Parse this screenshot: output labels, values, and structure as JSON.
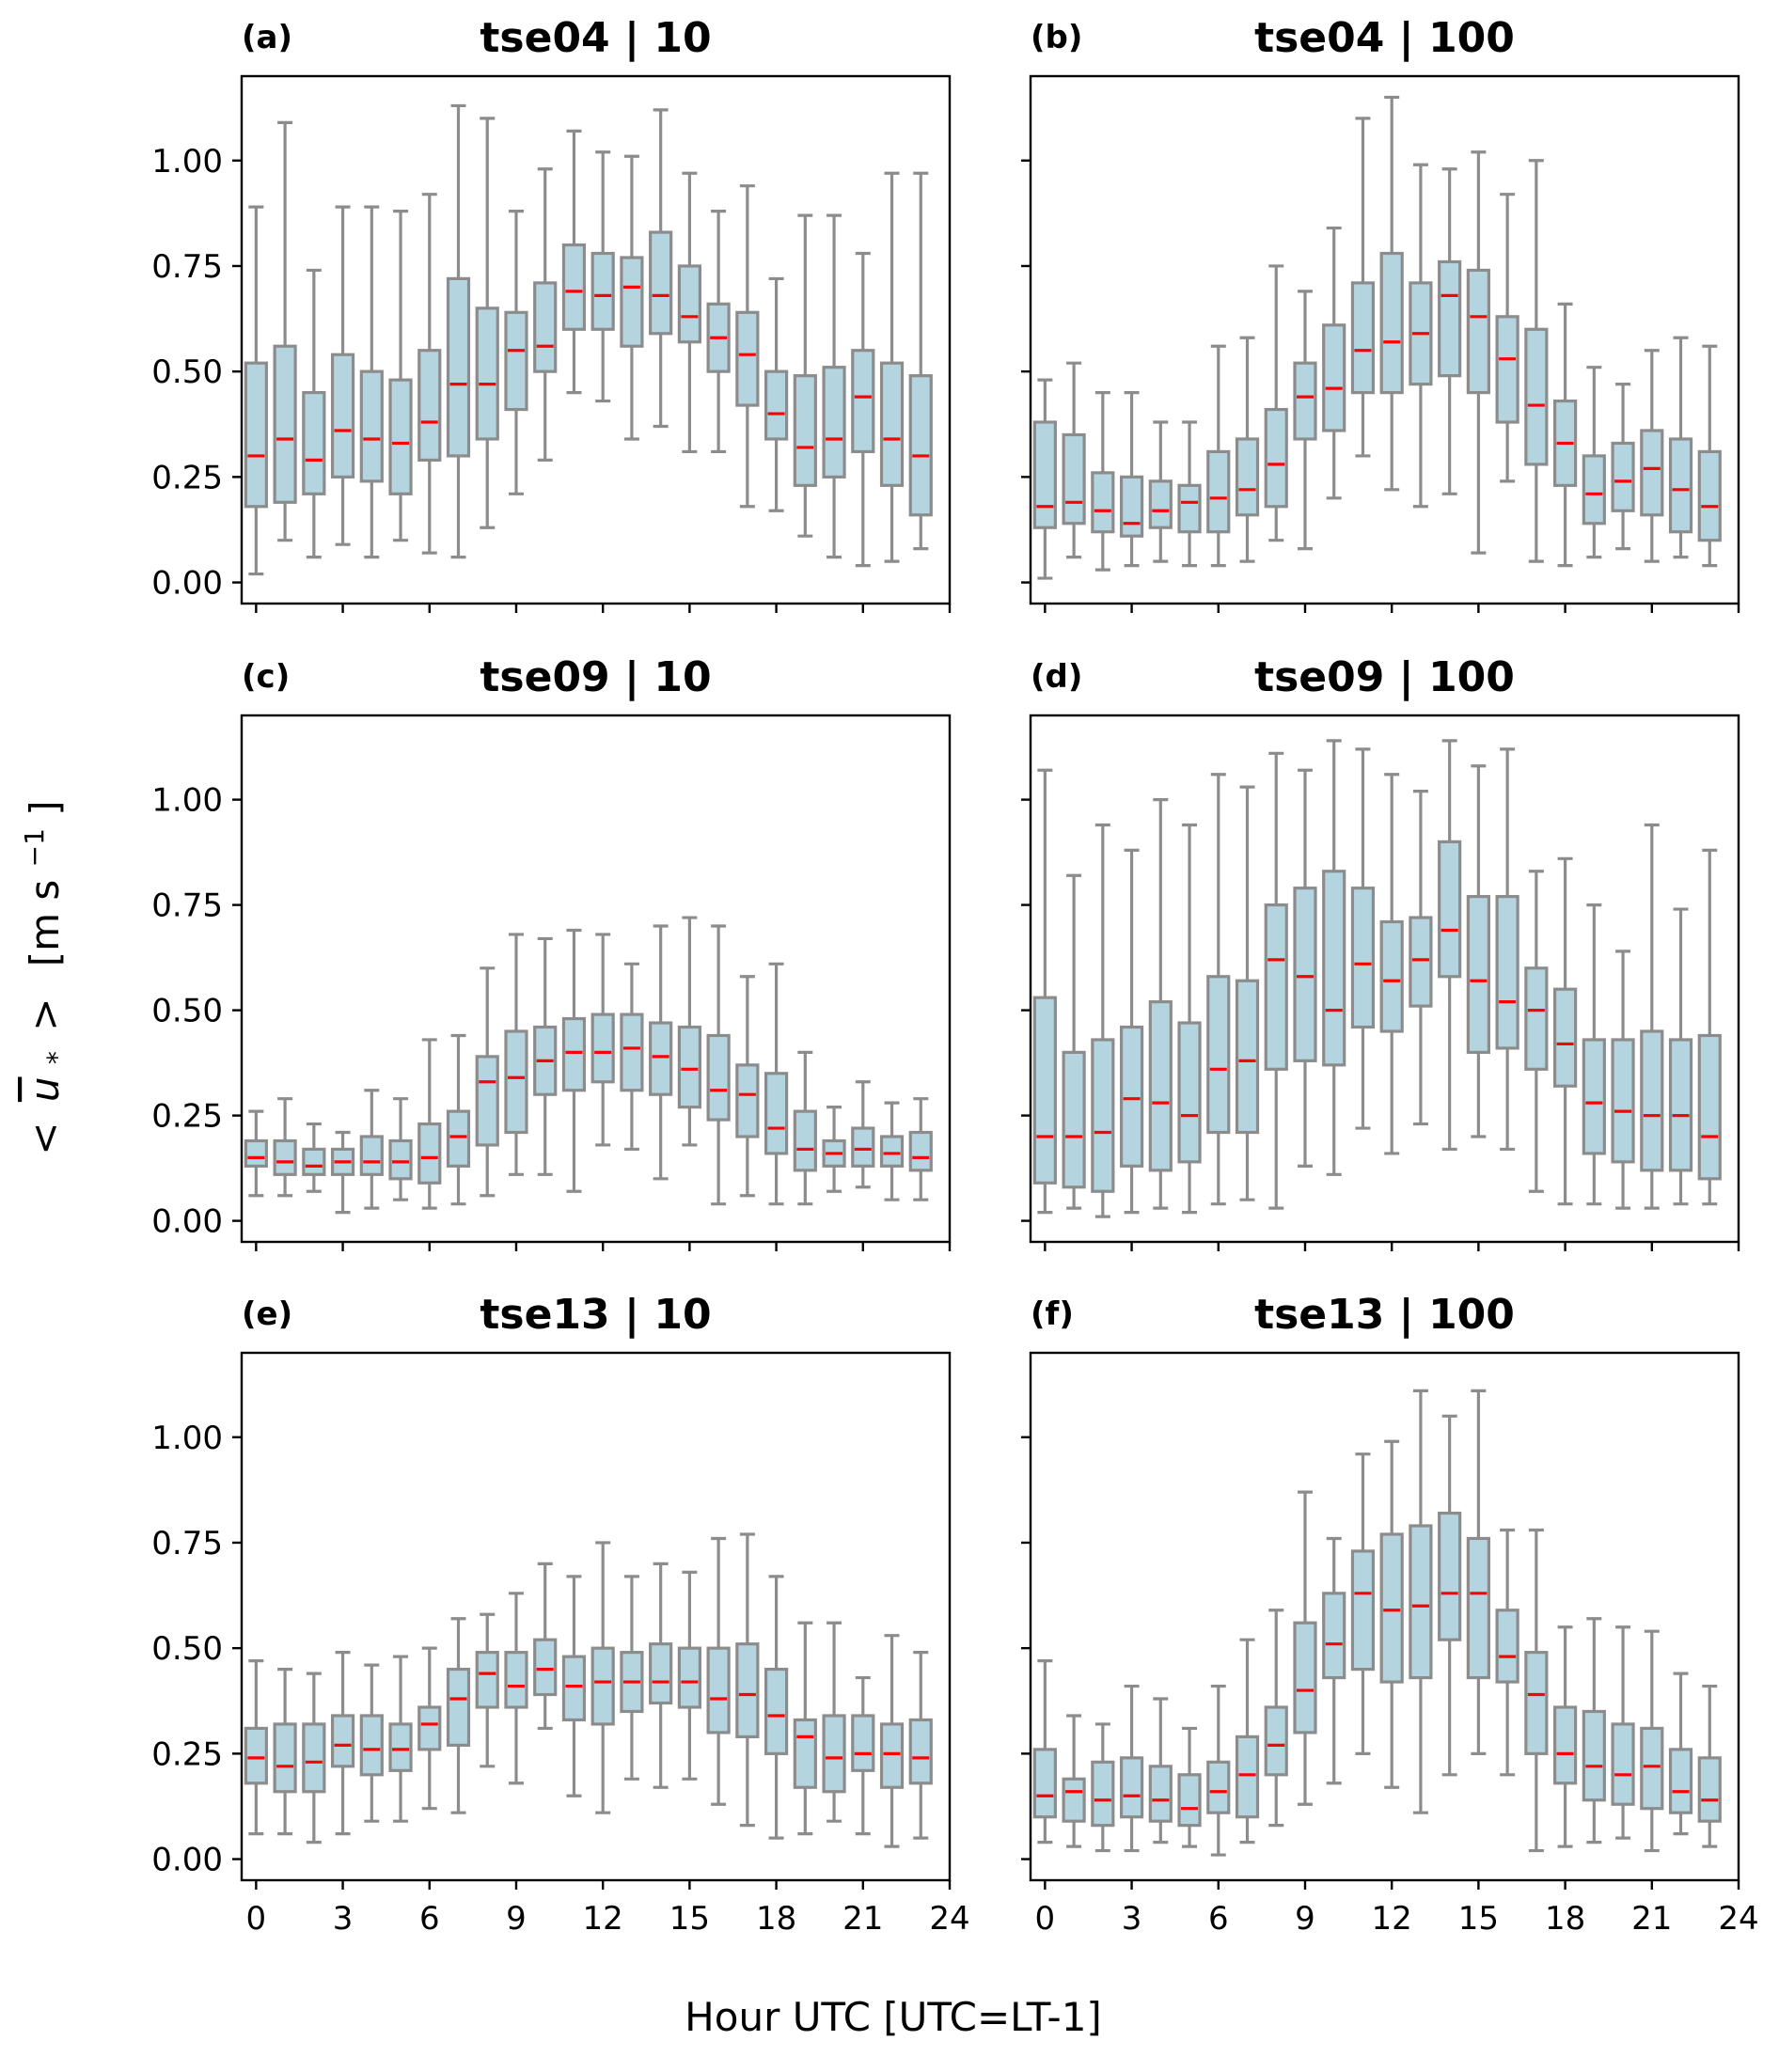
{
  "chart_data": {
    "type": "box",
    "figure": {
      "xlabel": "Hour UTC [UTC=LT-1]",
      "ylabel_parts": {
        "open": "<",
        "symbol": "u",
        "subscript": "*",
        "close": ">",
        "unit": "[m s",
        "unit_exp": "−1",
        "unit_close": "]"
      },
      "ylabel": "< ū* > [m s⁻¹]"
    },
    "xlim": [
      -0.5,
      24
    ],
    "ylim": [
      -0.05,
      1.2
    ],
    "xticks": [
      0,
      3,
      6,
      9,
      12,
      15,
      18,
      21,
      24
    ],
    "yticks": [
      0.0,
      0.25,
      0.5,
      0.75,
      1.0
    ],
    "ytick_labels": [
      "0.00",
      "0.25",
      "0.50",
      "0.75",
      "1.00"
    ],
    "colors": {
      "box_fill": "#b4d5e0",
      "box_edge": "#8c8c8c",
      "median": "#ff0000",
      "axis": "#000000"
    },
    "hours": [
      0,
      1,
      2,
      3,
      4,
      5,
      6,
      7,
      8,
      9,
      10,
      11,
      12,
      13,
      14,
      15,
      16,
      17,
      18,
      19,
      20,
      21,
      22,
      23
    ],
    "panels": [
      {
        "letter": "(a)",
        "title": "tse04 | 10",
        "whisker_high": [
          0.89,
          1.09,
          0.74,
          0.89,
          0.89,
          0.88,
          0.92,
          1.13,
          1.1,
          0.88,
          0.98,
          1.07,
          1.02,
          1.01,
          1.12,
          0.97,
          0.88,
          0.94,
          0.72,
          0.87,
          0.87,
          0.78,
          0.97,
          0.97
        ],
        "q3": [
          0.52,
          0.56,
          0.45,
          0.54,
          0.5,
          0.48,
          0.55,
          0.72,
          0.65,
          0.64,
          0.71,
          0.8,
          0.78,
          0.77,
          0.83,
          0.75,
          0.66,
          0.64,
          0.5,
          0.49,
          0.51,
          0.55,
          0.52,
          0.49
        ],
        "median": [
          0.3,
          0.34,
          0.29,
          0.36,
          0.34,
          0.33,
          0.38,
          0.47,
          0.47,
          0.55,
          0.56,
          0.69,
          0.68,
          0.7,
          0.68,
          0.63,
          0.58,
          0.54,
          0.4,
          0.32,
          0.34,
          0.44,
          0.34,
          0.3
        ],
        "q1": [
          0.18,
          0.19,
          0.21,
          0.25,
          0.24,
          0.21,
          0.29,
          0.3,
          0.34,
          0.41,
          0.5,
          0.6,
          0.6,
          0.56,
          0.59,
          0.57,
          0.5,
          0.42,
          0.34,
          0.23,
          0.25,
          0.31,
          0.23,
          0.16
        ],
        "whisker_low": [
          0.02,
          0.1,
          0.06,
          0.09,
          0.06,
          0.1,
          0.07,
          0.06,
          0.13,
          0.21,
          0.29,
          0.45,
          0.43,
          0.34,
          0.37,
          0.31,
          0.31,
          0.18,
          0.17,
          0.11,
          0.06,
          0.04,
          0.05,
          0.08
        ]
      },
      {
        "letter": "(b)",
        "title": "tse04 | 100",
        "whisker_high": [
          0.48,
          0.52,
          0.45,
          0.45,
          0.38,
          0.38,
          0.56,
          0.58,
          0.75,
          0.69,
          0.84,
          1.1,
          1.15,
          0.99,
          0.98,
          1.02,
          0.92,
          1.0,
          0.66,
          0.51,
          0.47,
          0.55,
          0.58,
          0.56
        ],
        "q3": [
          0.38,
          0.35,
          0.26,
          0.25,
          0.24,
          0.23,
          0.31,
          0.34,
          0.41,
          0.52,
          0.61,
          0.71,
          0.78,
          0.71,
          0.76,
          0.74,
          0.63,
          0.6,
          0.43,
          0.3,
          0.33,
          0.36,
          0.34,
          0.31
        ],
        "median": [
          0.18,
          0.19,
          0.17,
          0.14,
          0.17,
          0.19,
          0.2,
          0.22,
          0.28,
          0.44,
          0.46,
          0.55,
          0.57,
          0.59,
          0.68,
          0.63,
          0.53,
          0.42,
          0.33,
          0.21,
          0.24,
          0.27,
          0.22,
          0.18
        ],
        "q1": [
          0.13,
          0.14,
          0.12,
          0.11,
          0.13,
          0.12,
          0.12,
          0.16,
          0.18,
          0.34,
          0.36,
          0.45,
          0.45,
          0.47,
          0.49,
          0.45,
          0.38,
          0.28,
          0.23,
          0.14,
          0.17,
          0.16,
          0.12,
          0.1
        ],
        "whisker_low": [
          0.01,
          0.06,
          0.03,
          0.04,
          0.05,
          0.04,
          0.04,
          0.05,
          0.1,
          0.08,
          0.2,
          0.3,
          0.22,
          0.18,
          0.21,
          0.07,
          0.24,
          0.05,
          0.04,
          0.06,
          0.08,
          0.05,
          0.06,
          0.04
        ]
      },
      {
        "letter": "(c)",
        "title": "tse09 | 10",
        "whisker_high": [
          0.26,
          0.29,
          0.23,
          0.21,
          0.31,
          0.29,
          0.43,
          0.44,
          0.6,
          0.68,
          0.67,
          0.69,
          0.68,
          0.61,
          0.7,
          0.72,
          0.7,
          0.58,
          0.61,
          0.4,
          0.27,
          0.33,
          0.28,
          0.29
        ],
        "q3": [
          0.19,
          0.19,
          0.17,
          0.17,
          0.2,
          0.19,
          0.23,
          0.26,
          0.39,
          0.45,
          0.46,
          0.48,
          0.49,
          0.49,
          0.47,
          0.46,
          0.44,
          0.37,
          0.35,
          0.26,
          0.19,
          0.22,
          0.2,
          0.21
        ],
        "median": [
          0.15,
          0.14,
          0.13,
          0.14,
          0.14,
          0.14,
          0.15,
          0.2,
          0.33,
          0.34,
          0.38,
          0.4,
          0.4,
          0.41,
          0.39,
          0.36,
          0.31,
          0.3,
          0.22,
          0.17,
          0.16,
          0.17,
          0.16,
          0.15
        ],
        "q1": [
          0.13,
          0.11,
          0.11,
          0.11,
          0.11,
          0.1,
          0.09,
          0.13,
          0.18,
          0.21,
          0.3,
          0.31,
          0.33,
          0.31,
          0.3,
          0.27,
          0.24,
          0.2,
          0.16,
          0.12,
          0.13,
          0.13,
          0.13,
          0.12
        ],
        "whisker_low": [
          0.06,
          0.06,
          0.07,
          0.02,
          0.03,
          0.05,
          0.03,
          0.04,
          0.06,
          0.11,
          0.11,
          0.07,
          0.18,
          0.17,
          0.1,
          0.18,
          0.04,
          0.06,
          0.04,
          0.04,
          0.07,
          0.08,
          0.05,
          0.05
        ]
      },
      {
        "letter": "(d)",
        "title": "tse09 | 100",
        "whisker_high": [
          1.07,
          0.82,
          0.94,
          0.88,
          1.0,
          0.94,
          1.06,
          1.03,
          1.11,
          1.07,
          1.14,
          1.12,
          1.06,
          1.02,
          1.14,
          1.08,
          1.12,
          0.83,
          0.86,
          0.75,
          0.64,
          0.94,
          0.74,
          0.88
        ],
        "q3": [
          0.53,
          0.4,
          0.43,
          0.46,
          0.52,
          0.47,
          0.58,
          0.57,
          0.75,
          0.79,
          0.83,
          0.79,
          0.71,
          0.72,
          0.9,
          0.77,
          0.77,
          0.6,
          0.55,
          0.43,
          0.43,
          0.45,
          0.43,
          0.44
        ],
        "median": [
          0.2,
          0.2,
          0.21,
          0.29,
          0.28,
          0.25,
          0.36,
          0.38,
          0.62,
          0.58,
          0.5,
          0.61,
          0.57,
          0.62,
          0.69,
          0.57,
          0.52,
          0.5,
          0.42,
          0.28,
          0.26,
          0.25,
          0.25,
          0.2
        ],
        "q1": [
          0.09,
          0.08,
          0.07,
          0.13,
          0.12,
          0.14,
          0.21,
          0.21,
          0.36,
          0.38,
          0.37,
          0.46,
          0.45,
          0.51,
          0.58,
          0.4,
          0.41,
          0.36,
          0.32,
          0.16,
          0.14,
          0.12,
          0.12,
          0.1
        ],
        "whisker_low": [
          0.02,
          0.03,
          0.01,
          0.02,
          0.03,
          0.02,
          0.04,
          0.05,
          0.03,
          0.13,
          0.11,
          0.22,
          0.16,
          0.23,
          0.17,
          0.2,
          0.17,
          0.07,
          0.04,
          0.04,
          0.03,
          0.03,
          0.04,
          0.04
        ]
      },
      {
        "letter": "(e)",
        "title": "tse13 | 10",
        "whisker_high": [
          0.47,
          0.45,
          0.44,
          0.49,
          0.46,
          0.48,
          0.5,
          0.57,
          0.58,
          0.63,
          0.7,
          0.67,
          0.75,
          0.67,
          0.7,
          0.68,
          0.76,
          0.77,
          0.67,
          0.56,
          0.56,
          0.43,
          0.53,
          0.49
        ],
        "q3": [
          0.31,
          0.32,
          0.32,
          0.34,
          0.34,
          0.32,
          0.36,
          0.45,
          0.49,
          0.49,
          0.52,
          0.48,
          0.5,
          0.49,
          0.51,
          0.5,
          0.5,
          0.51,
          0.45,
          0.33,
          0.34,
          0.34,
          0.32,
          0.33
        ],
        "median": [
          0.24,
          0.22,
          0.23,
          0.27,
          0.26,
          0.26,
          0.32,
          0.38,
          0.44,
          0.41,
          0.45,
          0.41,
          0.42,
          0.42,
          0.42,
          0.42,
          0.38,
          0.39,
          0.34,
          0.29,
          0.24,
          0.25,
          0.25,
          0.24
        ],
        "q1": [
          0.18,
          0.16,
          0.16,
          0.22,
          0.2,
          0.21,
          0.26,
          0.27,
          0.36,
          0.36,
          0.39,
          0.33,
          0.32,
          0.35,
          0.37,
          0.36,
          0.3,
          0.29,
          0.25,
          0.17,
          0.16,
          0.21,
          0.17,
          0.18
        ],
        "whisker_low": [
          0.06,
          0.06,
          0.04,
          0.06,
          0.09,
          0.09,
          0.12,
          0.11,
          0.22,
          0.18,
          0.31,
          0.15,
          0.11,
          0.19,
          0.17,
          0.19,
          0.13,
          0.08,
          0.05,
          0.06,
          0.09,
          0.06,
          0.03,
          0.05
        ]
      },
      {
        "letter": "(f)",
        "title": "tse13 | 100",
        "whisker_high": [
          0.47,
          0.34,
          0.32,
          0.41,
          0.38,
          0.31,
          0.41,
          0.52,
          0.59,
          0.87,
          0.76,
          0.96,
          0.99,
          1.11,
          1.05,
          1.11,
          0.78,
          0.78,
          0.55,
          0.57,
          0.55,
          0.54,
          0.44,
          0.41
        ],
        "q3": [
          0.26,
          0.19,
          0.23,
          0.24,
          0.22,
          0.2,
          0.23,
          0.29,
          0.36,
          0.56,
          0.63,
          0.73,
          0.77,
          0.79,
          0.82,
          0.76,
          0.59,
          0.49,
          0.36,
          0.35,
          0.32,
          0.31,
          0.26,
          0.24
        ],
        "median": [
          0.15,
          0.16,
          0.14,
          0.15,
          0.14,
          0.12,
          0.16,
          0.2,
          0.27,
          0.4,
          0.51,
          0.63,
          0.59,
          0.6,
          0.63,
          0.63,
          0.48,
          0.39,
          0.25,
          0.22,
          0.2,
          0.22,
          0.16,
          0.14
        ],
        "q1": [
          0.1,
          0.09,
          0.08,
          0.1,
          0.09,
          0.08,
          0.11,
          0.1,
          0.2,
          0.3,
          0.43,
          0.45,
          0.42,
          0.43,
          0.52,
          0.43,
          0.42,
          0.25,
          0.18,
          0.14,
          0.13,
          0.12,
          0.11,
          0.09
        ],
        "whisker_low": [
          0.04,
          0.03,
          0.02,
          0.02,
          0.04,
          0.03,
          0.01,
          0.04,
          0.08,
          0.13,
          0.18,
          0.25,
          0.17,
          0.11,
          0.2,
          0.25,
          0.2,
          0.02,
          0.03,
          0.04,
          0.05,
          0.02,
          0.06,
          0.03
        ]
      }
    ]
  }
}
